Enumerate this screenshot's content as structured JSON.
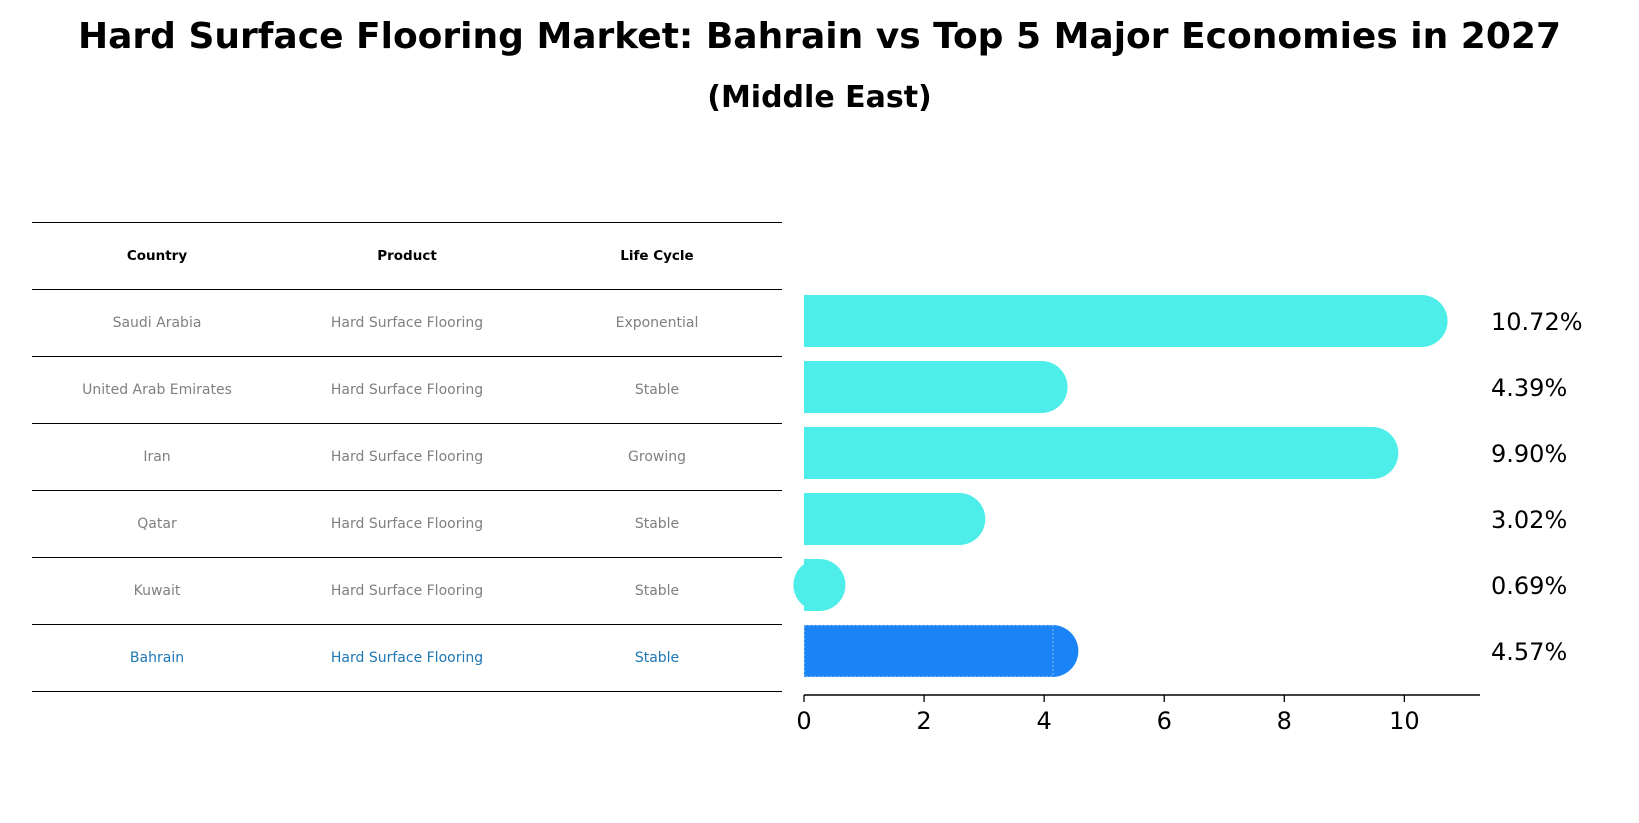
{
  "title": "Hard Surface Flooring Market: Bahrain vs Top 5 Major Economies in 2027",
  "subtitle": "(Middle East)",
  "table": {
    "headers": [
      "Country",
      "Product",
      "Life Cycle"
    ],
    "rows": [
      [
        "Saudi Arabia",
        "Hard Surface Flooring",
        "Exponential"
      ],
      [
        "United Arab Emirates",
        "Hard Surface Flooring",
        "Stable"
      ],
      [
        "Iran",
        "Hard Surface Flooring",
        "Growing"
      ],
      [
        "Qatar",
        "Hard Surface Flooring",
        "Stable"
      ],
      [
        "Kuwait",
        "Hard Surface Flooring",
        "Stable"
      ],
      [
        "Bahrain",
        "Hard Surface Flooring",
        "Stable"
      ]
    ],
    "highlight_country": "Bahrain"
  },
  "colors": {
    "bar": "#4deee9",
    "highlight": "#1a84f7",
    "highlight_text": "#1f77b4",
    "muted_text": "#808080"
  },
  "chart_data": {
    "type": "bar",
    "orientation": "horizontal",
    "categories": [
      "Saudi Arabia",
      "United Arab Emirates",
      "Iran",
      "Qatar",
      "Kuwait",
      "Bahrain"
    ],
    "values": [
      10.72,
      4.39,
      9.9,
      3.02,
      0.69,
      4.57
    ],
    "labels": [
      "10.72%",
      "4.39%",
      "9.90%",
      "3.02%",
      "0.69%",
      "4.57%"
    ],
    "highlight": "Bahrain",
    "xlim": [
      0,
      11.26
    ],
    "xticks": [
      0,
      2,
      4,
      6,
      8,
      10
    ],
    "title": "Hard Surface Flooring Market: Bahrain vs Top 5 Major Economies in 2027",
    "xlabel": "",
    "ylabel": ""
  }
}
